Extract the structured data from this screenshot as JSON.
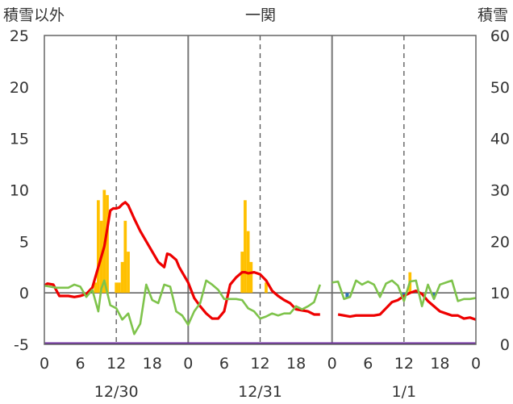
{
  "chart_data": {
    "type": "bar+line",
    "title": "一関",
    "left_axis_title": "積雪以外",
    "right_axis_title": "積雪",
    "left_ylim": [
      -5,
      25
    ],
    "left_yticks": [
      "25",
      "20",
      "15",
      "10",
      "5",
      "0",
      "-5"
    ],
    "right_ylim": [
      0,
      60
    ],
    "right_yticks": [
      "60",
      "50",
      "40",
      "30",
      "20",
      "10",
      "0"
    ],
    "x_range_hours": [
      0,
      72
    ],
    "x_tick_labels": [
      "0",
      "6",
      "12",
      "18",
      "0",
      "6",
      "12",
      "18",
      "0",
      "6",
      "12",
      "18",
      "0"
    ],
    "date_labels": [
      "12/30",
      "12/31",
      "1/1"
    ],
    "bars_orange": [
      {
        "h": 8.5,
        "v": 1.0
      },
      {
        "h": 9.0,
        "v": 9.0
      },
      {
        "h": 9.5,
        "v": 7.0
      },
      {
        "h": 10.0,
        "v": 10.0
      },
      {
        "h": 10.5,
        "v": 9.5
      },
      {
        "h": 12.0,
        "v": 1.0
      },
      {
        "h": 12.5,
        "v": 1.0
      },
      {
        "h": 13.0,
        "v": 3.0
      },
      {
        "h": 13.5,
        "v": 7.0
      },
      {
        "h": 14.0,
        "v": 4.0
      },
      {
        "h": 33.0,
        "v": 4.0
      },
      {
        "h": 33.5,
        "v": 9.0
      },
      {
        "h": 34.0,
        "v": 6.0
      },
      {
        "h": 34.5,
        "v": 3.0
      },
      {
        "h": 37.0,
        "v": 1.0
      },
      {
        "h": 61.0,
        "v": 2.0
      }
    ],
    "bars_blue": [
      {
        "h": 50.5,
        "v": -0.5
      },
      {
        "h": 60.0,
        "v": -0.5
      },
      {
        "h": 65.0,
        "v": -0.4
      }
    ],
    "series": [
      {
        "color": "#ee0000",
        "points": [
          [
            0,
            0.7
          ],
          [
            0.5,
            0.9
          ],
          [
            1.5,
            0.8
          ],
          [
            2.5,
            -0.3
          ],
          [
            4,
            -0.3
          ],
          [
            5,
            -0.4
          ],
          [
            6,
            -0.3
          ],
          [
            7,
            -0.1
          ],
          [
            8,
            0.5
          ],
          [
            9,
            2.5
          ],
          [
            10,
            4.5
          ],
          [
            11,
            8
          ],
          [
            11.5,
            8.2
          ],
          [
            12,
            8.2
          ],
          [
            12.5,
            8.3
          ],
          [
            13,
            8.6
          ],
          [
            13.5,
            8.8
          ],
          [
            14,
            8.5
          ],
          [
            15,
            7.2
          ],
          [
            16,
            6
          ],
          [
            17,
            5
          ],
          [
            18,
            4
          ],
          [
            19,
            3
          ],
          [
            20,
            2.5
          ],
          [
            20.5,
            3.8
          ],
          [
            21,
            3.7
          ],
          [
            22,
            3.2
          ],
          [
            22.5,
            2.5
          ],
          [
            23,
            2
          ],
          [
            24,
            1
          ],
          [
            25,
            -0.5
          ],
          [
            26,
            -1.3
          ],
          [
            27,
            -2
          ],
          [
            28,
            -2.5
          ],
          [
            29,
            -2.5
          ],
          [
            30,
            -1.8
          ],
          [
            31,
            0.8
          ],
          [
            32,
            1.5
          ],
          [
            33,
            2
          ],
          [
            33.5,
            2
          ],
          [
            34,
            1.9
          ],
          [
            35,
            2
          ],
          [
            36,
            1.8
          ],
          [
            37,
            1.2
          ],
          [
            38,
            0.2
          ],
          [
            39,
            -0.3
          ],
          [
            40,
            -0.7
          ],
          [
            41,
            -1
          ],
          [
            42,
            -1.6
          ],
          [
            43,
            -1.7
          ],
          [
            44,
            -1.8
          ],
          [
            45,
            -2.1
          ],
          [
            46,
            -2.1
          ]
        ],
        "points_2": [
          [
            49,
            -2.1
          ],
          [
            50,
            -2.2
          ],
          [
            51,
            -2.3
          ],
          [
            52,
            -2.2
          ],
          [
            53,
            -2.2
          ],
          [
            54,
            -2.2
          ],
          [
            55,
            -2.2
          ],
          [
            56,
            -2.1
          ],
          [
            57,
            -1.5
          ],
          [
            58,
            -0.9
          ],
          [
            59,
            -0.7
          ],
          [
            60,
            -0.3
          ],
          [
            61,
            0
          ],
          [
            62,
            0.2
          ],
          [
            63,
            -0.1
          ],
          [
            64,
            -0.8
          ],
          [
            65,
            -1.3
          ],
          [
            66,
            -1.8
          ],
          [
            67,
            -2
          ],
          [
            68,
            -2.2
          ],
          [
            69,
            -2.2
          ],
          [
            70,
            -2.5
          ],
          [
            71,
            -2.4
          ],
          [
            72,
            -2.6
          ]
        ]
      },
      {
        "color": "#7ec34b",
        "points": [
          [
            0,
            0.7
          ],
          [
            1,
            0.6
          ],
          [
            2,
            0.5
          ],
          [
            3,
            0.5
          ],
          [
            4,
            0.5
          ],
          [
            5,
            0.8
          ],
          [
            6,
            0.6
          ],
          [
            7,
            -0.4
          ],
          [
            8,
            0.3
          ],
          [
            9,
            -1.8
          ],
          [
            9.5,
            0.4
          ],
          [
            10,
            1.2
          ],
          [
            11,
            -1.2
          ],
          [
            12,
            -1.5
          ],
          [
            13,
            -2.6
          ],
          [
            14,
            -2
          ],
          [
            15,
            -4
          ],
          [
            16,
            -3
          ],
          [
            17,
            0.8
          ],
          [
            18,
            -0.7
          ],
          [
            19,
            -1
          ],
          [
            20,
            0.8
          ],
          [
            21,
            0.6
          ],
          [
            22,
            -1.8
          ],
          [
            23,
            -2.2
          ],
          [
            24,
            -3.1
          ],
          [
            25,
            -1.8
          ],
          [
            26,
            -1
          ],
          [
            27,
            1.2
          ],
          [
            28,
            0.8
          ],
          [
            29,
            0.3
          ],
          [
            30,
            -0.6
          ],
          [
            31,
            -0.6
          ],
          [
            32,
            -0.6
          ],
          [
            33,
            -0.7
          ],
          [
            34,
            -1.5
          ],
          [
            35,
            -1.8
          ],
          [
            36,
            -2.5
          ],
          [
            37,
            -2.3
          ],
          [
            38,
            -2
          ],
          [
            39,
            -2.2
          ],
          [
            40,
            -2
          ],
          [
            41,
            -2
          ],
          [
            42,
            -1.3
          ],
          [
            43,
            -1.6
          ],
          [
            44,
            -1.3
          ],
          [
            45,
            -0.9
          ],
          [
            46,
            0.8
          ]
        ],
        "points_2": [
          [
            48,
            1.0
          ],
          [
            49,
            1.1
          ],
          [
            50,
            -0.6
          ],
          [
            51,
            -0.4
          ],
          [
            52,
            1.2
          ],
          [
            53,
            0.8
          ],
          [
            54,
            1.1
          ],
          [
            55,
            0.8
          ],
          [
            56,
            -0.4
          ],
          [
            57,
            0.9
          ],
          [
            58,
            1.2
          ],
          [
            59,
            0.7
          ],
          [
            60,
            -0.8
          ],
          [
            61,
            1.1
          ],
          [
            62,
            1.2
          ],
          [
            63,
            -1.3
          ],
          [
            64,
            0.8
          ],
          [
            65,
            -0.6
          ],
          [
            66,
            0.8
          ],
          [
            67,
            1.0
          ],
          [
            68,
            1.2
          ],
          [
            69,
            -0.8
          ],
          [
            70,
            -0.6
          ],
          [
            71,
            -0.6
          ],
          [
            72,
            -0.5
          ]
        ]
      }
    ],
    "baseline_color": "#7030a0"
  }
}
